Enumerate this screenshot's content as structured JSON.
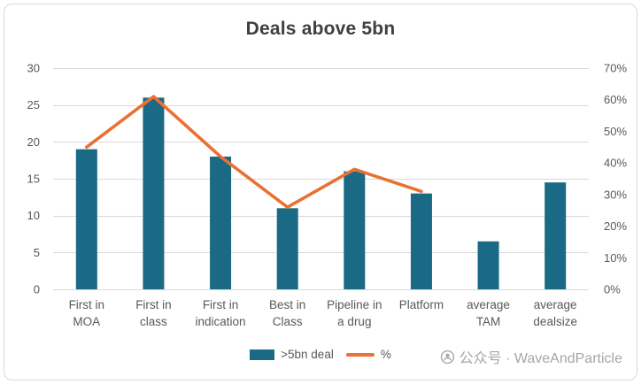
{
  "title": "Deals above 5bn",
  "watermark": {
    "text": "公众号 · WaveAndParticle"
  },
  "legend": {
    "bar_label": ">5bn deal",
    "line_label": "%"
  },
  "chart_data": {
    "type": "bar",
    "subtype": "bar-with-line-overlay",
    "title": "Deals above 5bn",
    "categories": [
      "First in MOA",
      "First in class",
      "First in indication",
      "Best in Class",
      "Pipeline in a drug",
      "Platform",
      "average TAM",
      "average dealsize"
    ],
    "category_label_lines": [
      [
        "First in",
        "MOA"
      ],
      [
        "First in",
        "class"
      ],
      [
        "First in",
        "indication"
      ],
      [
        "Best in",
        "Class"
      ],
      [
        "Pipeline in",
        "a drug"
      ],
      [
        "Platform"
      ],
      [
        "average",
        "TAM"
      ],
      [
        "average",
        "dealsize"
      ]
    ],
    "series": [
      {
        "name": ">5bn deal",
        "type": "bar",
        "axis": "left",
        "color": "#1A6985",
        "values": [
          19,
          26,
          18,
          11,
          16,
          13,
          6.5,
          14.5
        ]
      },
      {
        "name": "%",
        "type": "line",
        "axis": "right",
        "color": "#E97132",
        "values": [
          45,
          61,
          42,
          26,
          38,
          31,
          null,
          null
        ]
      }
    ],
    "left_axis": {
      "min": 0,
      "max": 30,
      "ticks": [
        0,
        5,
        10,
        15,
        20,
        25,
        30
      ]
    },
    "right_axis": {
      "min": 0,
      "max": 70,
      "tick_values": [
        0,
        10,
        20,
        30,
        40,
        50,
        60,
        70
      ],
      "tick_labels": [
        "0%",
        "10%",
        "20%",
        "30%",
        "40%",
        "50%",
        "60%",
        "70%"
      ]
    },
    "grid": true,
    "legend_position": "bottom",
    "gridline_color": "#d9d9d9"
  }
}
